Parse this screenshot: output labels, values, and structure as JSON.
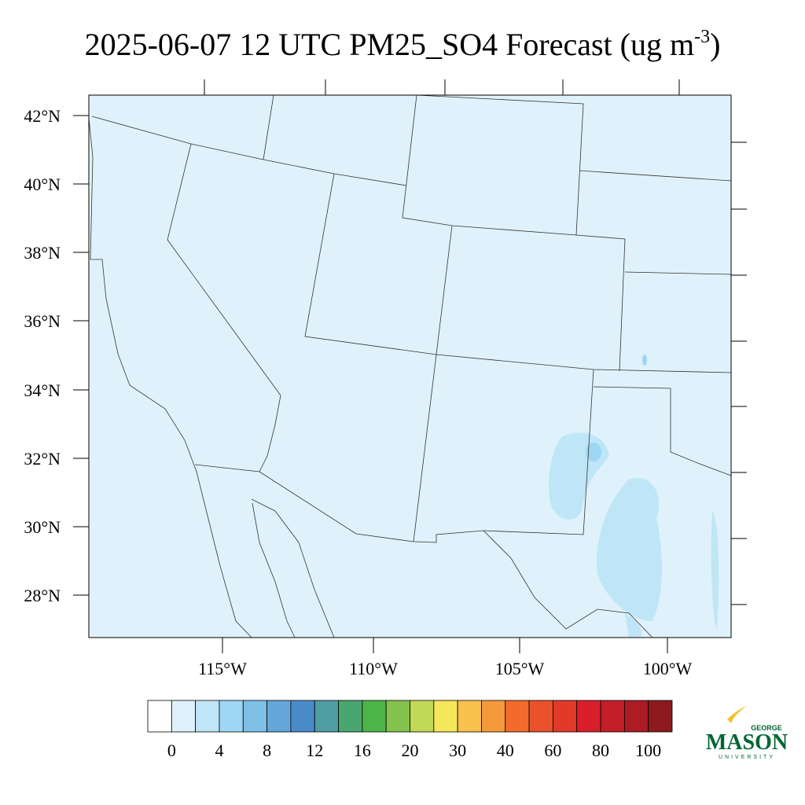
{
  "header": {
    "title": "2025-06-07 12 UTC PM25_SO4 Forecast (ug m",
    "title_superscript": "-3",
    "title_end": ")"
  },
  "map": {
    "lat_labels": [
      "42°N",
      "40°N",
      "38°N",
      "36°N",
      "34°N",
      "32°N",
      "30°N",
      "28°N"
    ],
    "lon_labels": [
      "115°W",
      "110°W",
      "105°W",
      "100°W"
    ],
    "background_color": "#dff2fb"
  },
  "colorbar": {
    "levels": [
      0,
      4,
      8,
      12,
      16,
      20,
      30,
      40,
      60,
      80,
      100
    ],
    "colors": [
      "#ffffff",
      "#dff2fb",
      "#bfe6f7",
      "#9dd7f3",
      "#7ec0e6",
      "#65a7da",
      "#4a8bc9",
      "#4f9ea3",
      "#4aa66f",
      "#4cb548",
      "#83c24f",
      "#c2d957",
      "#f6e65a",
      "#f8c24c",
      "#f59a3b",
      "#f26b2a",
      "#e9522b",
      "#e13a2a",
      "#d9202a",
      "#c41f28",
      "#ad1b23",
      "#8d1a1d"
    ]
  },
  "logo": {
    "line1": "GEORGE",
    "line2": "MASON",
    "line3": "UNIVERSITY"
  }
}
